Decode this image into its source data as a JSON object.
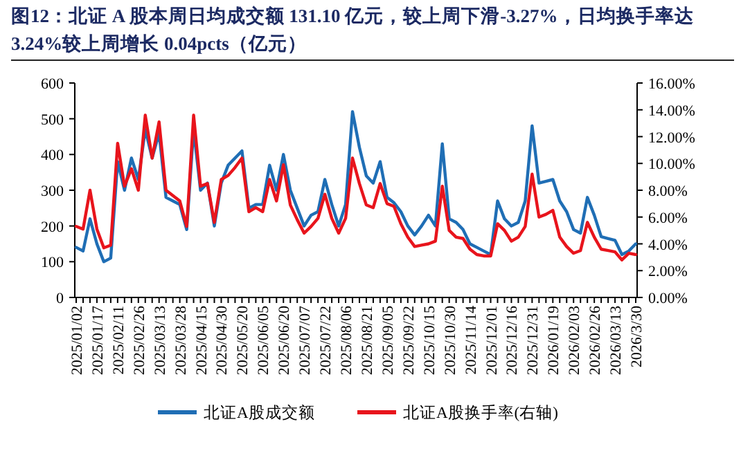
{
  "chart_data": {
    "type": "line",
    "title": "图12：北证 A 股本周日均成交额 131.10 亿元，较上周下滑-3.27%，日均换手率达3.24%较上周增长 0.04pcts（亿元）",
    "categories": [
      "2025/01/02",
      null,
      null,
      "2025/01/17",
      null,
      null,
      "2025/02/11",
      null,
      null,
      "2025/02/26",
      null,
      null,
      "2025/03/13",
      null,
      null,
      "2025/03/28",
      null,
      null,
      "2025/04/15",
      null,
      null,
      "2025/04/30",
      null,
      null,
      "2025/05/20",
      null,
      null,
      "2025/06/05",
      null,
      null,
      "2025/06/20",
      null,
      null,
      "2025/07/07",
      null,
      null,
      "2025/07/22",
      null,
      null,
      "2025/08/06",
      null,
      null,
      "2025/08/21",
      null,
      null,
      "2025/09/05",
      null,
      null,
      "2025/09/22",
      null,
      null,
      "2025/10/15",
      null,
      null,
      "2025/10/30",
      null,
      null,
      "2025/11/14",
      null,
      null,
      "2025/12/01",
      null,
      null,
      "2025/12/16",
      null,
      null,
      "2025/12/31",
      null,
      null,
      "2026/01/19",
      null,
      null,
      "2026/02/03",
      null,
      null,
      "2026/02/26",
      null,
      null,
      "2026/03/13",
      null,
      null,
      "2026/3/30"
    ],
    "series": [
      {
        "name": "北证A股成交额",
        "color": "#1f6eb5",
        "values": [
          140,
          130,
          220,
          150,
          100,
          110,
          380,
          300,
          390,
          330,
          470,
          390,
          460,
          280,
          270,
          260,
          190,
          470,
          300,
          320,
          200,
          320,
          370,
          390,
          410,
          250,
          260,
          260,
          370,
          300,
          400,
          300,
          250,
          200,
          230,
          240,
          330,
          260,
          200,
          260,
          520,
          420,
          340,
          320,
          380,
          280,
          265,
          240,
          200,
          175,
          200,
          230,
          200,
          430,
          220,
          210,
          190,
          150,
          140,
          130,
          120,
          270,
          220,
          200,
          210,
          270,
          480,
          320,
          325,
          330,
          270,
          240,
          190,
          180,
          280,
          230,
          170,
          165,
          160,
          120,
          130,
          150
        ]
      },
      {
        "name": "北证A股换手率(右轴)",
        "color": "#e8141c",
        "axis": "y2",
        "values": [
          5.3,
          5.1,
          8.0,
          5.1,
          3.7,
          3.9,
          11.5,
          8.3,
          9.6,
          8.0,
          13.6,
          10.4,
          13.1,
          8.0,
          7.6,
          7.2,
          5.3,
          13.6,
          8.3,
          8.5,
          5.6,
          8.8,
          9.1,
          9.7,
          10.4,
          6.4,
          6.7,
          6.4,
          8.8,
          7.2,
          9.9,
          6.9,
          5.8,
          4.8,
          5.3,
          5.9,
          7.7,
          5.9,
          4.8,
          5.9,
          10.4,
          8.5,
          6.9,
          6.7,
          8.5,
          7.0,
          6.8,
          5.5,
          4.5,
          3.8,
          3.9,
          4.0,
          4.2,
          8.3,
          5.0,
          4.5,
          4.4,
          3.6,
          3.2,
          3.1,
          3.1,
          5.5,
          5.0,
          4.2,
          4.5,
          5.3,
          9.2,
          6.0,
          6.2,
          6.5,
          4.5,
          3.8,
          3.3,
          3.5,
          5.6,
          4.5,
          3.6,
          3.5,
          3.4,
          2.8,
          3.3,
          3.2
        ]
      }
    ],
    "ylim": [
      0,
      600
    ],
    "yticks": [
      0,
      100,
      200,
      300,
      400,
      500,
      600
    ],
    "y2lim": [
      0,
      16
    ],
    "y2ticks": [
      {
        "value": 0,
        "label": "0.00%"
      },
      {
        "value": 2,
        "label": "2.00%"
      },
      {
        "value": 4,
        "label": "4.00%"
      },
      {
        "value": 6,
        "label": "6.00%"
      },
      {
        "value": 8,
        "label": "8.00%"
      },
      {
        "value": 10,
        "label": "10.00%"
      },
      {
        "value": 12,
        "label": "12.00%"
      },
      {
        "value": 14,
        "label": "14.00%"
      },
      {
        "value": 16,
        "label": "16.00%"
      }
    ],
    "legend": "bottom"
  }
}
